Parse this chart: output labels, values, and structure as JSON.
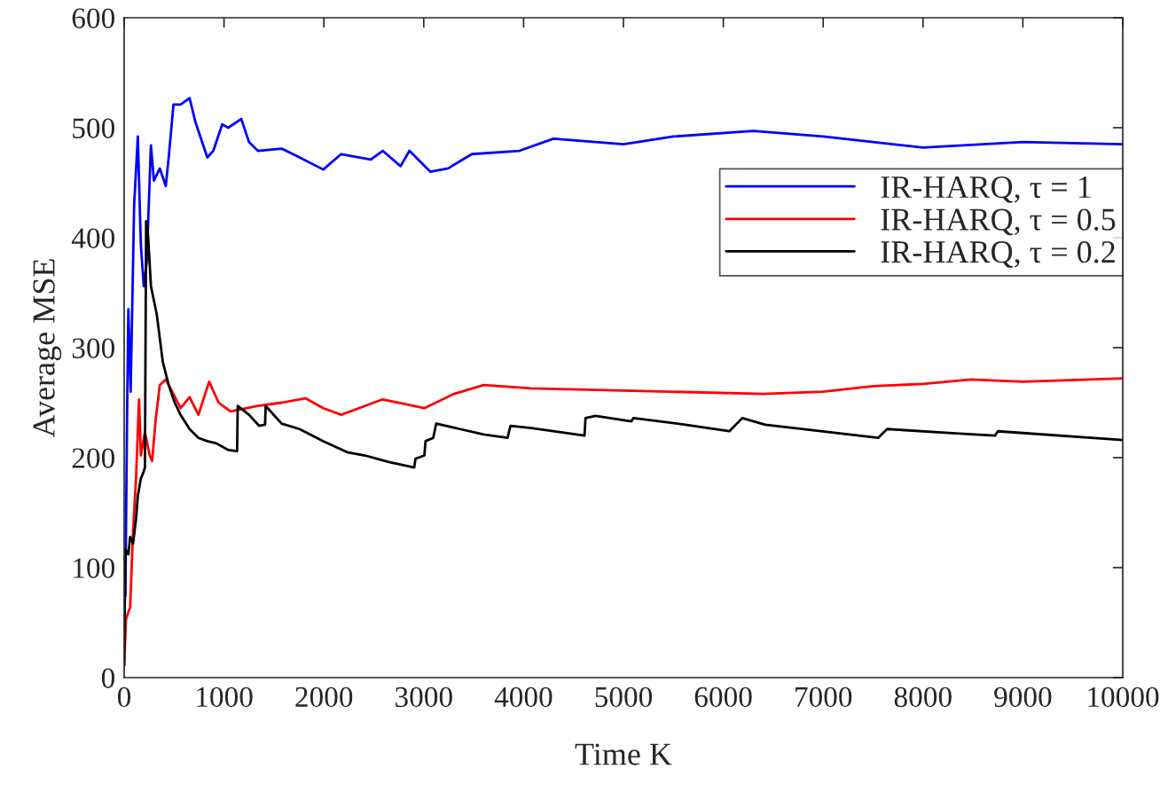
{
  "chart_data": {
    "type": "line",
    "xlabel": "Time K",
    "ylabel": "Average MSE",
    "xlim": [
      0,
      10000
    ],
    "xticks": [
      0,
      1000,
      2000,
      3000,
      4000,
      5000,
      6000,
      7000,
      8000,
      9000,
      10000
    ],
    "ylim": [
      0,
      600
    ],
    "yticks": [
      0,
      100,
      200,
      300,
      400,
      500,
      600
    ],
    "grid": false,
    "legend": "right",
    "marker": "none",
    "line_style": "solid",
    "series": [
      {
        "name": "IR-HARQ, τ = 1",
        "color": "#0000ff",
        "x": [
          12,
          30,
          42,
          65,
          100,
          137,
          167,
          196,
          226,
          268,
          298,
          357,
          417,
          446,
          494,
          565,
          655,
          714,
          833,
          893,
          982,
          1042,
          1173,
          1250,
          1339,
          1577,
          1756,
          1994,
          2173,
          2470,
          2589,
          2768,
          2857,
          3065,
          3244,
          3482,
          3958,
          4300,
          5000,
          5500,
          6300,
          7000,
          8000,
          9000,
          10000
        ],
        "values": [
          74,
          245,
          335,
          260,
          430,
          492,
          394,
          356,
          378,
          484,
          452,
          463,
          447,
          473,
          521,
          521,
          527,
          505,
          473,
          479,
          503,
          500,
          508,
          487,
          479,
          481,
          473,
          462,
          476,
          471,
          479,
          465,
          479,
          460,
          463,
          476,
          479,
          490,
          485,
          492,
          497,
          492,
          482,
          487,
          485
        ]
      },
      {
        "name": "IR-HARQ, τ = 0.5",
        "color": "#ff0000",
        "x": [
          0,
          18,
          60,
          89,
          119,
          149,
          167,
          208,
          256,
          280,
          315,
          357,
          417,
          476,
          565,
          655,
          744,
          851,
          946,
          1065,
          1339,
          1577,
          1815,
          1994,
          2173,
          2351,
          2589,
          3006,
          3304,
          3601,
          4077,
          5000,
          6400,
          7000,
          7500,
          8000,
          8480,
          9000,
          10000
        ],
        "values": [
          11,
          53,
          64,
          133,
          181,
          253,
          202,
          223,
          202,
          197,
          234,
          266,
          271,
          261,
          245,
          255,
          239,
          269,
          250,
          242,
          247,
          250,
          254,
          245,
          239,
          245,
          253,
          245,
          258,
          266,
          263,
          261,
          258,
          260,
          265,
          267,
          271,
          269,
          272
        ]
      },
      {
        "name": "IR-HARQ, τ = 0.2",
        "color": "#000000",
        "x": [
          0,
          12,
          42,
          60,
          89,
          119,
          137,
          167,
          190,
          208,
          220,
          238,
          268,
          327,
          387,
          446,
          506,
          565,
          655,
          744,
          833,
          923,
          1042,
          1131,
          1137,
          1250,
          1351,
          1411,
          1417,
          1577,
          1756,
          1994,
          2232,
          2411,
          2649,
          2905,
          2917,
          3006,
          3018,
          3095,
          3125,
          3363,
          3601,
          3839,
          3869,
          4077,
          4610,
          4620,
          4720,
          5080,
          5100,
          5620,
          6060,
          6190,
          6420,
          7550,
          7640,
          8330,
          8720,
          8750,
          10000
        ],
        "values": [
          11,
          117,
          112,
          128,
          122,
          144,
          165,
          181,
          186,
          191,
          415,
          404,
          356,
          330,
          287,
          266,
          250,
          239,
          226,
          218,
          215,
          213,
          207,
          206,
          247,
          239,
          229,
          230,
          247,
          231,
          226,
          215,
          205,
          202,
          196,
          191,
          199,
          202,
          215,
          218,
          231,
          226,
          221,
          218,
          229,
          227,
          220,
          236,
          238,
          233,
          236,
          230,
          224,
          236,
          230,
          218,
          226,
          222,
          220,
          224,
          216
        ]
      }
    ]
  }
}
